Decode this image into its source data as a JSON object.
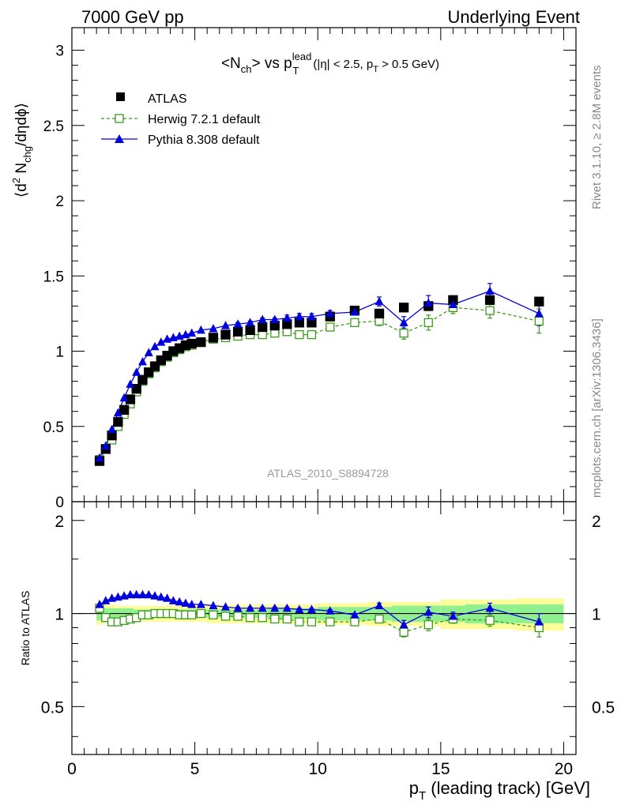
{
  "header": {
    "left": "7000 GeV pp",
    "right": "Underlying Event"
  },
  "side_labels": {
    "rivet": "Rivet 3.1.10, ≥ 2.8M events",
    "mcplots": "mcplots.cern.ch [arXiv:1306.3436]"
  },
  "main_plot": {
    "title_parts": {
      "a": "<N",
      "a_sub": "ch",
      "b": "> vs p",
      "b_sup": "lead",
      "b_sub": "T",
      "cut1": " (|η| < 2.5, p",
      "cut_sub": "T",
      "cut2": " > 0.5 GeV)"
    },
    "ylabel_parts": {
      "a": "⟨d",
      "a_sup": "2",
      "b": " N",
      "b_sub": "chg",
      "c": "/dηdϕ⟩"
    },
    "watermark": "ATLAS_2010_S8894728",
    "ylim": [
      0,
      3.15
    ],
    "y_ticks": [
      {
        "v": 0.5,
        "label": "0.5"
      },
      {
        "v": 1,
        "label": "1"
      },
      {
        "v": 1.5,
        "label": "1.5"
      },
      {
        "v": 2,
        "label": "2"
      },
      {
        "v": 2.5,
        "label": "2.5"
      },
      {
        "v": 3,
        "label": "3"
      }
    ]
  },
  "ratio_plot": {
    "ylabel": "Ratio to ATLAS",
    "y_ticks": [
      {
        "v": 0.5,
        "label": "0.5"
      },
      {
        "v": 1,
        "label": "1"
      },
      {
        "v": 2,
        "label": "2"
      }
    ]
  },
  "x_axis": {
    "label_a": "p",
    "label_sub": "T",
    "label_b": " (leading track) [GeV]",
    "xlim": [
      0,
      20.5
    ],
    "ticks": [
      {
        "v": 0,
        "label": "0"
      },
      {
        "v": 5,
        "label": "5"
      },
      {
        "v": 10,
        "label": "10"
      },
      {
        "v": 15,
        "label": "15"
      },
      {
        "v": 20,
        "label": "20"
      }
    ]
  },
  "legend": [
    {
      "name": "ATLAS",
      "style": "atlas"
    },
    {
      "name": "Herwig 7.2.1 default",
      "style": "herwig"
    },
    {
      "name": "Pythia 8.308 default",
      "style": "pythia"
    }
  ],
  "colors": {
    "atlas": "#000000",
    "herwig": "#3a9a1a",
    "pythia": "#0000dd",
    "band_inner": "#90f090",
    "band_outer": "#fcfc9a"
  },
  "chart_data": {
    "type": "scatter",
    "x": [
      1.125,
      1.375,
      1.625,
      1.875,
      2.125,
      2.375,
      2.625,
      2.875,
      3.125,
      3.375,
      3.625,
      3.875,
      4.125,
      4.375,
      4.625,
      4.875,
      5.25,
      5.75,
      6.25,
      6.75,
      7.25,
      7.75,
      8.25,
      8.75,
      9.25,
      9.75,
      10.5,
      11.5,
      12.5,
      13.5,
      14.5,
      15.5,
      17.0,
      19.0
    ],
    "series": [
      {
        "name": "ATLAS",
        "style": "atlas",
        "values": [
          0.27,
          0.35,
          0.44,
          0.53,
          0.61,
          0.68,
          0.75,
          0.81,
          0.86,
          0.9,
          0.94,
          0.97,
          1.0,
          1.02,
          1.04,
          1.05,
          1.06,
          1.09,
          1.11,
          1.13,
          1.14,
          1.16,
          1.17,
          1.18,
          1.19,
          1.19,
          1.23,
          1.27,
          1.25,
          1.29,
          1.3,
          1.34,
          1.34,
          1.33
        ]
      },
      {
        "name": "Herwig 7.2.1 default",
        "style": "herwig",
        "values": [
          0.28,
          0.35,
          0.41,
          0.5,
          0.58,
          0.65,
          0.73,
          0.8,
          0.85,
          0.89,
          0.93,
          0.96,
          0.99,
          1.01,
          1.03,
          1.04,
          1.06,
          1.08,
          1.09,
          1.1,
          1.11,
          1.11,
          1.12,
          1.13,
          1.11,
          1.11,
          1.16,
          1.19,
          1.2,
          1.12,
          1.19,
          1.29,
          1.27,
          1.2
        ],
        "errors": [
          0,
          0,
          0,
          0,
          0,
          0,
          0,
          0,
          0,
          0,
          0,
          0,
          0,
          0,
          0,
          0,
          0,
          0,
          0,
          0.01,
          0.01,
          0.01,
          0.01,
          0.02,
          0.02,
          0.02,
          0.02,
          0.02,
          0.03,
          0.04,
          0.05,
          0.04,
          0.05,
          0.08
        ]
      },
      {
        "name": "Pythia 8.308 default",
        "style": "pythia",
        "values": [
          0.29,
          0.37,
          0.48,
          0.59,
          0.69,
          0.78,
          0.86,
          0.93,
          0.99,
          1.03,
          1.06,
          1.08,
          1.09,
          1.1,
          1.11,
          1.12,
          1.14,
          1.15,
          1.17,
          1.18,
          1.19,
          1.21,
          1.21,
          1.22,
          1.23,
          1.23,
          1.25,
          1.26,
          1.33,
          1.19,
          1.32,
          1.31,
          1.4,
          1.25
        ],
        "errors": [
          0,
          0,
          0,
          0,
          0,
          0,
          0,
          0,
          0,
          0,
          0,
          0,
          0,
          0,
          0,
          0,
          0,
          0,
          0,
          0.01,
          0.01,
          0.01,
          0.01,
          0.02,
          0.02,
          0.02,
          0.02,
          0.02,
          0.03,
          0.04,
          0.05,
          0.04,
          0.05,
          0.08
        ]
      }
    ],
    "ratio": {
      "ylim": [
        0.35,
        2.3
      ],
      "log_y": true,
      "herwig": [
        1.04,
        0.97,
        0.94,
        0.94,
        0.95,
        0.96,
        0.97,
        0.99,
        0.99,
        1.0,
        1.0,
        1.0,
        1.0,
        0.99,
        0.99,
        0.99,
        1.0,
        0.99,
        0.98,
        0.98,
        0.97,
        0.97,
        0.96,
        0.96,
        0.94,
        0.94,
        0.94,
        0.94,
        0.96,
        0.87,
        0.92,
        0.96,
        0.95,
        0.9
      ],
      "pythia": [
        1.07,
        1.1,
        1.12,
        1.13,
        1.14,
        1.15,
        1.15,
        1.15,
        1.15,
        1.14,
        1.13,
        1.12,
        1.1,
        1.09,
        1.08,
        1.07,
        1.07,
        1.06,
        1.05,
        1.04,
        1.04,
        1.04,
        1.04,
        1.04,
        1.03,
        1.03,
        1.02,
        0.99,
        1.06,
        0.92,
        1.01,
        0.98,
        1.04,
        0.94
      ],
      "ratio_errors": [
        0,
        0,
        0,
        0,
        0,
        0,
        0,
        0,
        0,
        0,
        0,
        0,
        0,
        0,
        0,
        0,
        0,
        0,
        0,
        0.01,
        0.01,
        0.01,
        0.01,
        0.01,
        0.01,
        0.01,
        0.01,
        0.01,
        0.02,
        0.03,
        0.04,
        0.03,
        0.04,
        0.06
      ],
      "band_edges": [
        1.0,
        1.25,
        1.5,
        1.75,
        2.0,
        2.25,
        2.5,
        2.75,
        3.0,
        3.25,
        3.5,
        3.75,
        4.0,
        4.25,
        4.5,
        4.75,
        5.0,
        5.5,
        6.0,
        6.5,
        7.0,
        7.5,
        8.0,
        8.5,
        9.0,
        9.5,
        10.0,
        11.0,
        12.0,
        13.0,
        14.0,
        15.0,
        16.0,
        18.0,
        20.0
      ],
      "band_inner": [
        0.05,
        0.04,
        0.04,
        0.04,
        0.04,
        0.04,
        0.03,
        0.03,
        0.03,
        0.03,
        0.03,
        0.03,
        0.03,
        0.03,
        0.03,
        0.03,
        0.03,
        0.03,
        0.03,
        0.03,
        0.03,
        0.03,
        0.04,
        0.04,
        0.04,
        0.04,
        0.05,
        0.05,
        0.05,
        0.06,
        0.06,
        0.06,
        0.07,
        0.07
      ],
      "band_outer": [
        0.08,
        0.07,
        0.07,
        0.06,
        0.06,
        0.06,
        0.06,
        0.06,
        0.06,
        0.06,
        0.06,
        0.06,
        0.06,
        0.06,
        0.06,
        0.06,
        0.06,
        0.07,
        0.07,
        0.07,
        0.07,
        0.07,
        0.07,
        0.07,
        0.07,
        0.07,
        0.08,
        0.08,
        0.09,
        0.09,
        0.09,
        0.11,
        0.11,
        0.12
      ]
    }
  }
}
